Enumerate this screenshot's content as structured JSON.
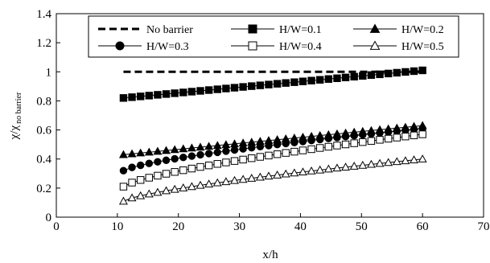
{
  "chart_data": {
    "type": "line",
    "title": "",
    "xlabel": "x/h",
    "ylabel_main": "χ/χ",
    "ylabel_sub": "no barrier",
    "xlim": [
      0,
      70
    ],
    "ylim": [
      0,
      1.4
    ],
    "xticks": [
      "0",
      "10",
      "20",
      "30",
      "40",
      "50",
      "60",
      "70"
    ],
    "yticks": [
      "0",
      "0.2",
      "0.4",
      "0.6",
      "0.8",
      "1",
      "1.2",
      "1.4"
    ],
    "grid": false,
    "legend_placement": "top",
    "series": [
      {
        "name": "No barrier",
        "marker": "dashed-line",
        "x_start": 11,
        "x_end": 60,
        "x_step": 1.4,
        "y_start": 1.0,
        "y_end": 1.0,
        "curve": "linear"
      },
      {
        "name": "H/W=0.1",
        "marker": "filled-square",
        "x_start": 11,
        "x_end": 60,
        "x_step": 1.4,
        "y_start": 0.82,
        "y_end": 1.01,
        "curve": "linear"
      },
      {
        "name": "H/W=0.2",
        "marker": "filled-triangle",
        "x_start": 11,
        "x_end": 60,
        "x_step": 1.4,
        "y_start": 0.43,
        "y_end": 0.63,
        "curve": "linear"
      },
      {
        "name": "H/W=0.3",
        "marker": "filled-circle",
        "x_start": 11,
        "x_end": 60,
        "x_step": 1.4,
        "y_start": 0.32,
        "y_end": 0.61,
        "curve": "concave"
      },
      {
        "name": "H/W=0.4",
        "marker": "open-square",
        "x_start": 11,
        "x_end": 60,
        "x_step": 1.4,
        "y_start": 0.21,
        "y_end": 0.57,
        "curve": "concave"
      },
      {
        "name": "H/W=0.5",
        "marker": "open-triangle",
        "x_start": 11,
        "x_end": 60,
        "x_step": 1.4,
        "y_start": 0.11,
        "y_end": 0.4,
        "curve": "concave"
      }
    ]
  }
}
